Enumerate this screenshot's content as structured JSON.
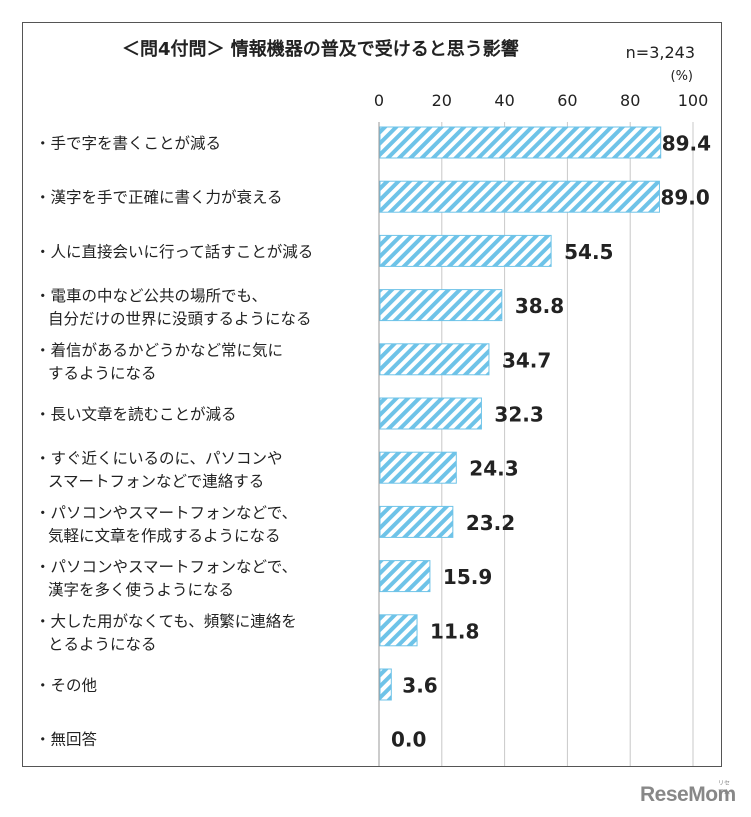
{
  "chart_data": {
    "type": "bar",
    "orientation": "horizontal",
    "title": "＜問4付問＞ 情報機器の普及で受けると思う影響",
    "sample_note": "n=3,243",
    "unit_label": "(%)",
    "xlim": [
      0,
      100
    ],
    "ticks": [
      0,
      20,
      40,
      60,
      80,
      100
    ],
    "bar_color": "#6ec3e8",
    "categories": [
      [
        "・手で字を書くことが減る"
      ],
      [
        "・漢字を手で正確に書く力が衰える"
      ],
      [
        "・人に直接会いに行って話すことが減る"
      ],
      [
        "・電車の中など公共の場所でも、",
        "自分だけの世界に没頭するようになる"
      ],
      [
        "・着信があるかどうかなど常に気に",
        "するようになる"
      ],
      [
        "・長い文章を読むことが減る"
      ],
      [
        "・すぐ近くにいるのに、パソコンや",
        "スマートフォンなどで連絡する"
      ],
      [
        "・パソコンやスマートフォンなどで、",
        "気軽に文章を作成するようになる"
      ],
      [
        "・パソコンやスマートフォンなどで、",
        "漢字を多く使うようになる"
      ],
      [
        "・大した用がなくても、頻繁に連絡を",
        "とるようになる"
      ],
      [
        "・その他"
      ],
      [
        "・無回答"
      ]
    ],
    "values": [
      89.4,
      89.0,
      54.5,
      38.8,
      34.7,
      32.3,
      24.3,
      23.2,
      15.9,
      11.8,
      3.6,
      0.0
    ],
    "value_labels": [
      "89.4",
      "89.0",
      "54.5",
      "38.8",
      "34.7",
      "32.3",
      "24.3",
      "23.2",
      "15.9",
      "11.8",
      "3.6",
      "0.0"
    ]
  },
  "watermark": {
    "brand": "ReseMom",
    "sub": "リセマム"
  }
}
